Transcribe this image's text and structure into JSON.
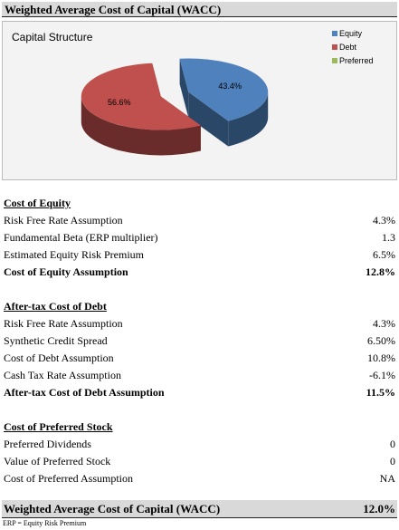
{
  "title": "Weighted Average Cost of Capital (WACC)",
  "colors": {
    "equity": "#4f81bd",
    "debt": "#c0504d",
    "preferred": "#9bbb59"
  },
  "chart_data": {
    "type": "pie",
    "title": "Capital Structure",
    "slices": [
      {
        "name": "Equity",
        "value": 43.4,
        "label": "43.4%",
        "color": "#4f81bd"
      },
      {
        "name": "Debt",
        "value": 56.6,
        "label": "56.6%",
        "color": "#c0504d"
      },
      {
        "name": "Preferred",
        "value": 0,
        "label": "",
        "color": "#9bbb59"
      }
    ],
    "legend": [
      "Equity",
      "Debt",
      "Preferred"
    ],
    "legend_position": "top-right"
  },
  "cost_of_equity": {
    "heading": "Cost of Equity",
    "rows": [
      {
        "label": "Risk Free Rate Assumption",
        "value": "4.3%"
      },
      {
        "label": "Fundamental Beta (ERP multiplier)",
        "value": "1.3"
      },
      {
        "label": "Estimated Equity Risk Premium",
        "value": "6.5%"
      }
    ],
    "total": {
      "label": "Cost of Equity Assumption",
      "value": "12.8%"
    }
  },
  "cost_of_debt": {
    "heading": "After-tax Cost of Debt",
    "rows": [
      {
        "label": "Risk Free Rate Assumption",
        "value": "4.3%"
      },
      {
        "label": "Synthetic Credit Spread",
        "value": "6.50%"
      },
      {
        "label": "Cost of Debt Assumption",
        "value": "10.8%"
      },
      {
        "label": "Cash Tax Rate Assumption",
        "value": "-6.1%"
      }
    ],
    "total": {
      "label": "After-tax Cost of Debt Assumption",
      "value": "11.5%"
    }
  },
  "cost_of_preferred": {
    "heading": "Cost of Preferred Stock",
    "rows": [
      {
        "label": "Preferred Dividends",
        "value": "0"
      },
      {
        "label": "Value of Preferred Stock",
        "value": "0"
      },
      {
        "label": "Cost of Preferred Assumption",
        "value": "NA"
      }
    ]
  },
  "wacc": {
    "label": "Weighted Average Cost of Capital (WACC)",
    "value": "12.0%"
  },
  "footnote": "ERP = Equity Risk Premium"
}
